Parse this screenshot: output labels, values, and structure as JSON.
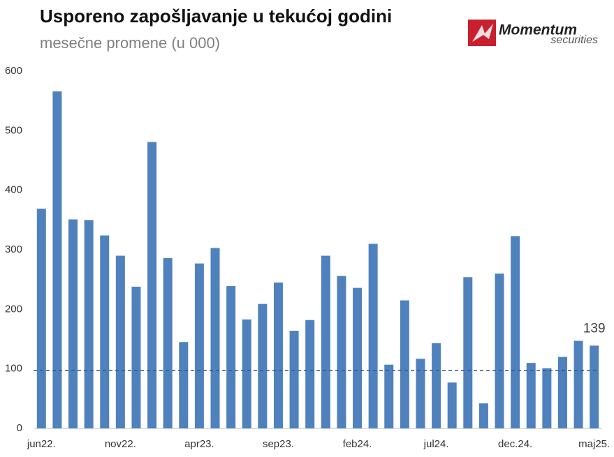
{
  "chart_data": {
    "type": "bar",
    "title": "Usporeno zapošljavanje u tekućoj godini",
    "subtitle": "mesečne promene (u 000)",
    "logo": {
      "name": "Momentum",
      "tagline": "securities"
    },
    "categories": [
      "jun22.",
      null,
      null,
      null,
      null,
      "nov22.",
      null,
      null,
      null,
      null,
      "apr23.",
      null,
      null,
      null,
      null,
      "sep23.",
      null,
      null,
      null,
      null,
      "feb24.",
      null,
      null,
      null,
      null,
      "jul24.",
      null,
      null,
      null,
      null,
      "dec.24.",
      null,
      null,
      null,
      null,
      "maj25."
    ],
    "values": [
      369,
      566,
      351,
      350,
      324,
      290,
      238,
      481,
      286,
      145,
      277,
      303,
      239,
      183,
      209,
      245,
      164,
      182,
      290,
      256,
      236,
      310,
      107,
      215,
      117,
      143,
      77,
      254,
      42,
      260,
      323,
      110,
      101,
      120,
      147,
      139
    ],
    "color": "#4f81bd",
    "data_labels": "last",
    "reference_line": 97,
    "reference_color": "#2e5b93",
    "ylim": [
      0,
      600
    ],
    "yticks": [
      0,
      100,
      200,
      300,
      400,
      500,
      600
    ],
    "grid": false
  }
}
